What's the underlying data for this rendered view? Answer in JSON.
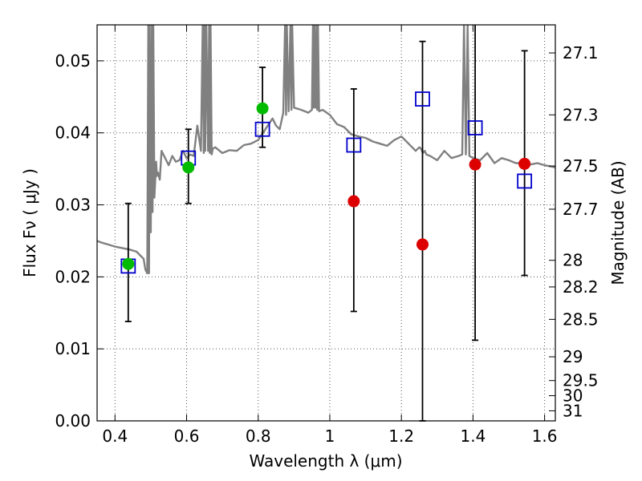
{
  "chart_data": {
    "type": "scatter",
    "xlabel": "Wavelength  λ (μm)",
    "ylabel": "Flux  Fν  ( μJy )",
    "y2label": "Magnitude (AB)",
    "xlim": [
      0.35,
      1.63
    ],
    "ylim": [
      0.0,
      0.055
    ],
    "grid": true,
    "x_ticks": [
      0.4,
      0.6,
      0.8,
      1.0,
      1.2,
      1.4,
      1.6
    ],
    "x_tick_labels": [
      "0.4",
      "0.6",
      "0.8",
      "1",
      "1.2",
      "1.4",
      "1.6"
    ],
    "y_ticks": [
      0.0,
      0.01,
      0.02,
      0.03,
      0.04,
      0.05
    ],
    "y_tick_labels": [
      "0.00",
      "0.01",
      "0.02",
      "0.03",
      "0.04",
      "0.05"
    ],
    "y2_ticks": [
      {
        "label": "27.1",
        "flux": 0.0511
      },
      {
        "label": "27.3",
        "flux": 0.0425
      },
      {
        "label": "27.5",
        "flux": 0.0354
      },
      {
        "label": "27.7",
        "flux": 0.0294
      },
      {
        "label": "28",
        "flux": 0.0223
      },
      {
        "label": "28.2",
        "flux": 0.0186
      },
      {
        "label": "28.5",
        "flux": 0.0141
      },
      {
        "label": "29",
        "flux": 0.0089
      },
      {
        "label": "29.5",
        "flux": 0.0056
      },
      {
        "label": "30",
        "flux": 0.0035
      },
      {
        "label": "31",
        "flux": 0.0014
      }
    ],
    "colors": {
      "model": "#808080",
      "squares": "#0000cc",
      "green": "#00bb00",
      "red": "#dd0000",
      "errorbar": "#000000",
      "grid": "#555555"
    },
    "model_spectrum": {
      "x": [
        0.35,
        0.36,
        0.38,
        0.4,
        0.42,
        0.44,
        0.46,
        0.47,
        0.48,
        0.485,
        0.49,
        0.493,
        0.495,
        0.497,
        0.5,
        0.503,
        0.505,
        0.507,
        0.51,
        0.513,
        0.515,
        0.517,
        0.52,
        0.525,
        0.53,
        0.54,
        0.55,
        0.56,
        0.57,
        0.58,
        0.59,
        0.6,
        0.61,
        0.62,
        0.63,
        0.64,
        0.645,
        0.648,
        0.65,
        0.652,
        0.655,
        0.66,
        0.663,
        0.665,
        0.667,
        0.67,
        0.673,
        0.68,
        0.7,
        0.72,
        0.74,
        0.76,
        0.78,
        0.8,
        0.82,
        0.84,
        0.85,
        0.86,
        0.87,
        0.875,
        0.878,
        0.88,
        0.885,
        0.89,
        0.893,
        0.895,
        0.9,
        0.92,
        0.94,
        0.95,
        0.953,
        0.955,
        0.957,
        0.96,
        0.963,
        0.965,
        0.967,
        0.97,
        0.98,
        1.0,
        1.02,
        1.04,
        1.06,
        1.08,
        1.1,
        1.12,
        1.14,
        1.16,
        1.18,
        1.2,
        1.22,
        1.24,
        1.25,
        1.255,
        1.26,
        1.265,
        1.27,
        1.28,
        1.3,
        1.32,
        1.34,
        1.36,
        1.37,
        1.375,
        1.38,
        1.385,
        1.39,
        1.4,
        1.42,
        1.44,
        1.46,
        1.48,
        1.5,
        1.52,
        1.54,
        1.56,
        1.58,
        1.6,
        1.63
      ],
      "y": [
        0.025,
        0.0248,
        0.0245,
        0.0242,
        0.024,
        0.0238,
        0.0235,
        0.023,
        0.0225,
        0.021,
        0.0205,
        0.055,
        0.0205,
        0.055,
        0.0262,
        0.055,
        0.029,
        0.055,
        0.031,
        0.034,
        0.036,
        0.034,
        0.0345,
        0.0335,
        0.0375,
        0.0365,
        0.0355,
        0.0368,
        0.036,
        0.0362,
        0.0375,
        0.0365,
        0.037,
        0.0368,
        0.041,
        0.0375,
        0.055,
        0.0372,
        0.055,
        0.0375,
        0.055,
        0.0375,
        0.055,
        0.0372,
        0.055,
        0.037,
        0.0378,
        0.038,
        0.0372,
        0.0376,
        0.0375,
        0.0383,
        0.0385,
        0.039,
        0.0405,
        0.042,
        0.041,
        0.0405,
        0.0428,
        0.055,
        0.0425,
        0.055,
        0.043,
        0.055,
        0.0432,
        0.055,
        0.0435,
        0.0432,
        0.0428,
        0.0432,
        0.055,
        0.0435,
        0.055,
        0.0435,
        0.055,
        0.0432,
        0.055,
        0.043,
        0.0432,
        0.0425,
        0.0412,
        0.0408,
        0.0398,
        0.0395,
        0.0393,
        0.0388,
        0.0385,
        0.0382,
        0.039,
        0.0395,
        0.0385,
        0.0375,
        0.038,
        0.0378,
        0.0372,
        0.0375,
        0.037,
        0.0368,
        0.0362,
        0.0375,
        0.0365,
        0.0368,
        0.037,
        0.055,
        0.037,
        0.055,
        0.0368,
        0.0365,
        0.0362,
        0.0372,
        0.0358,
        0.0365,
        0.0362,
        0.0358,
        0.0358,
        0.0356,
        0.0358,
        0.0355,
        0.0352
      ]
    },
    "errorbars": [
      {
        "x": 0.437,
        "lo": 0.0138,
        "hi": 0.0302
      },
      {
        "x": 0.605,
        "lo": 0.0302,
        "hi": 0.0405
      },
      {
        "x": 0.812,
        "lo": 0.038,
        "hi": 0.0491
      },
      {
        "x": 1.067,
        "lo": 0.0152,
        "hi": 0.0461
      },
      {
        "x": 1.259,
        "lo": 0.0,
        "hi": 0.0527
      },
      {
        "x": 1.406,
        "lo": 0.0112,
        "hi": 0.055
      },
      {
        "x": 1.544,
        "lo": 0.0202,
        "hi": 0.0514
      }
    ],
    "series": [
      {
        "marker": "open-square",
        "x": [
          0.437,
          0.605,
          0.812,
          1.067,
          1.259,
          1.406,
          1.544
        ],
        "y": [
          0.0215,
          0.0365,
          0.0405,
          0.0383,
          0.0447,
          0.0407,
          0.0333
        ]
      },
      {
        "marker": "filled-circle-green",
        "x": [
          0.437,
          0.605,
          0.812
        ],
        "y": [
          0.0218,
          0.0352,
          0.0434
        ]
      },
      {
        "marker": "filled-circle-red",
        "x": [
          1.067,
          1.259,
          1.406,
          1.544
        ],
        "y": [
          0.0305,
          0.0245,
          0.0356,
          0.0357
        ]
      }
    ]
  }
}
